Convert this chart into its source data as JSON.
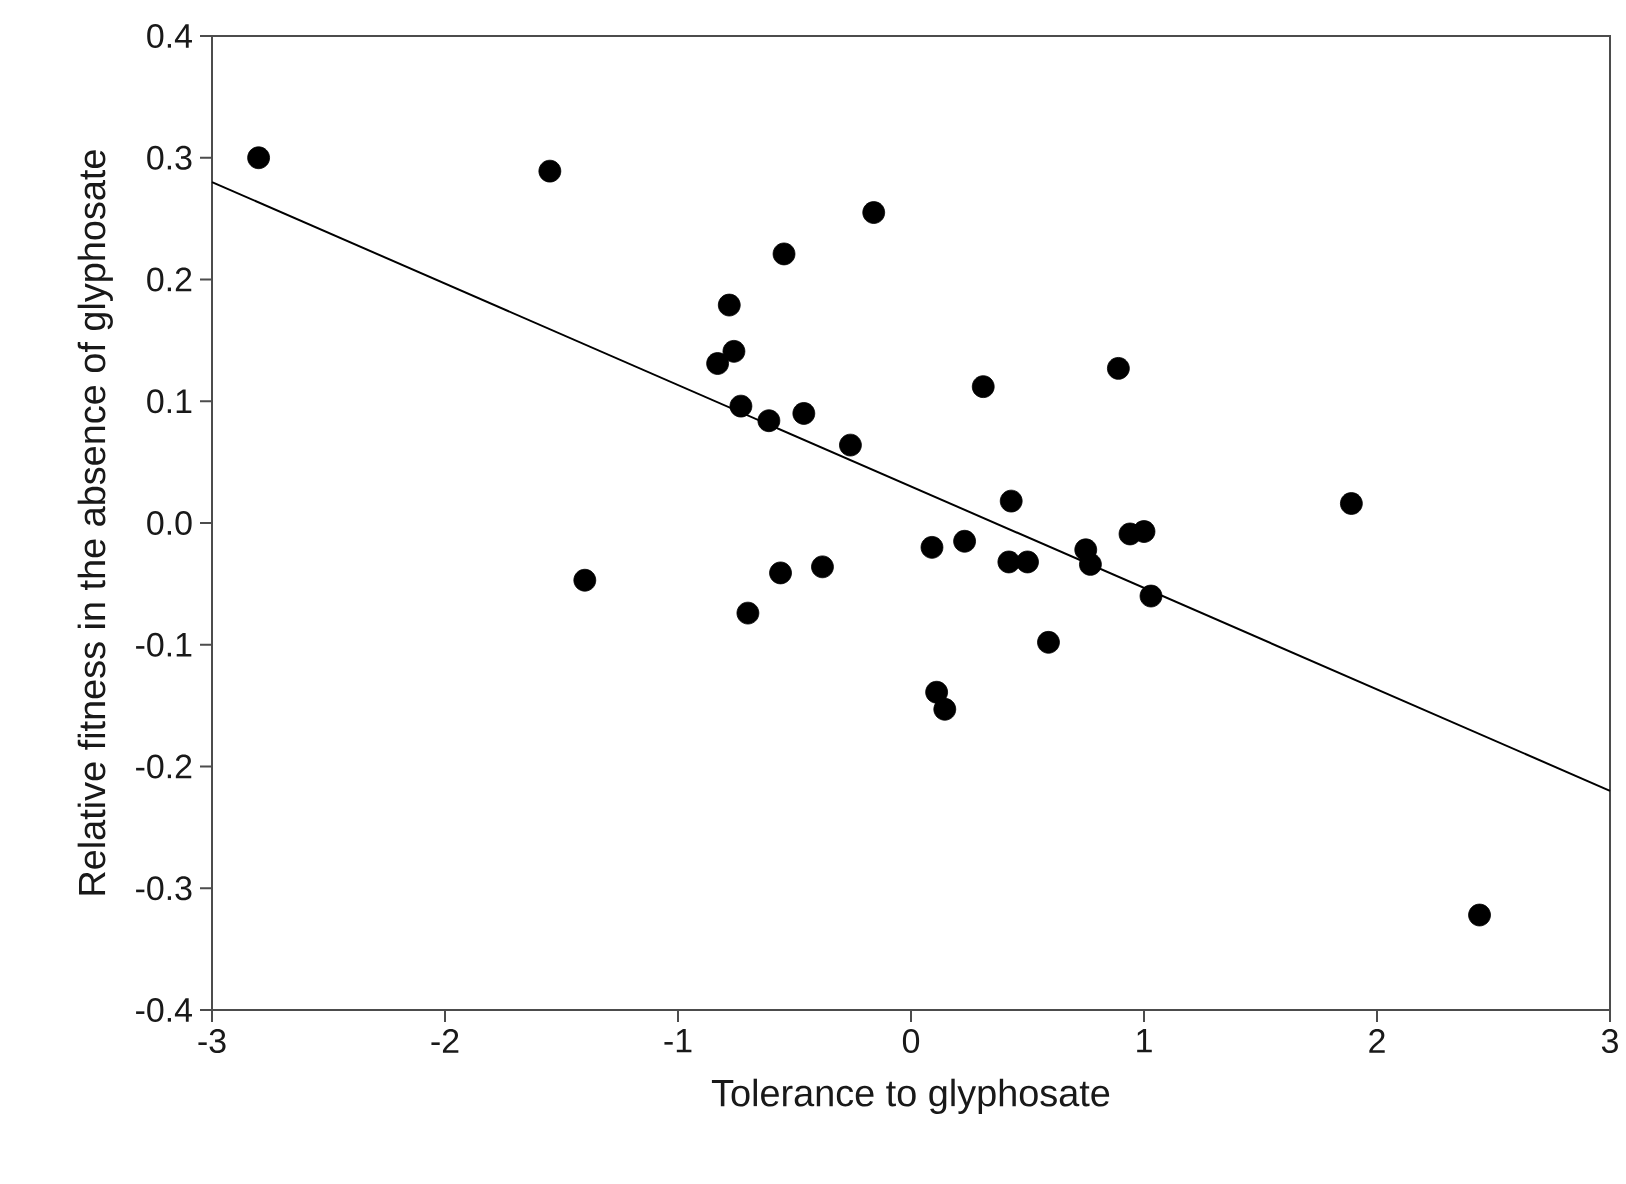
{
  "chart_data": {
    "type": "scatter",
    "xlabel": "Tolerance to glyphosate",
    "ylabel": "Relative fitness in the absence of glyphosate",
    "xlim": [
      -3,
      3
    ],
    "ylim": [
      -0.4,
      0.4
    ],
    "xticks": [
      -3,
      -2,
      -1,
      0,
      1,
      2,
      3
    ],
    "yticks": [
      -0.4,
      -0.3,
      -0.2,
      -0.1,
      {
        "value": 0,
        "label": "0.0"
      },
      0.1,
      0.2,
      0.3,
      0.4
    ],
    "series": [
      {
        "color": "#000000",
        "marker": "circle",
        "x": [
          -2.8,
          -1.55,
          -1.4,
          -0.16,
          -0.545,
          -0.78,
          -0.76,
          -0.83,
          -0.73,
          -0.61,
          -0.46,
          -0.26,
          0.31,
          0.89,
          0.43,
          0.09,
          0.23,
          0.42,
          0.5,
          0.75,
          0.77,
          0.94,
          1.0,
          1.03,
          0.59,
          -0.38,
          -0.56,
          -0.7,
          0.11,
          0.145,
          1.89,
          2.44
        ],
        "values": [
          0.3,
          0.289,
          -0.047,
          0.255,
          0.221,
          0.179,
          0.141,
          0.131,
          0.096,
          0.084,
          0.09,
          0.064,
          0.112,
          0.127,
          0.018,
          -0.02,
          -0.015,
          -0.032,
          -0.032,
          -0.022,
          -0.034,
          -0.009,
          -0.007,
          -0.06,
          -0.098,
          -0.036,
          -0.041,
          -0.074,
          -0.139,
          -0.153,
          0.016,
          -0.322
        ]
      },
      {
        "type": "line",
        "color": "#000000",
        "marker": "none",
        "x": [
          -3,
          3
        ],
        "values": [
          0.28,
          -0.22
        ]
      }
    ]
  }
}
